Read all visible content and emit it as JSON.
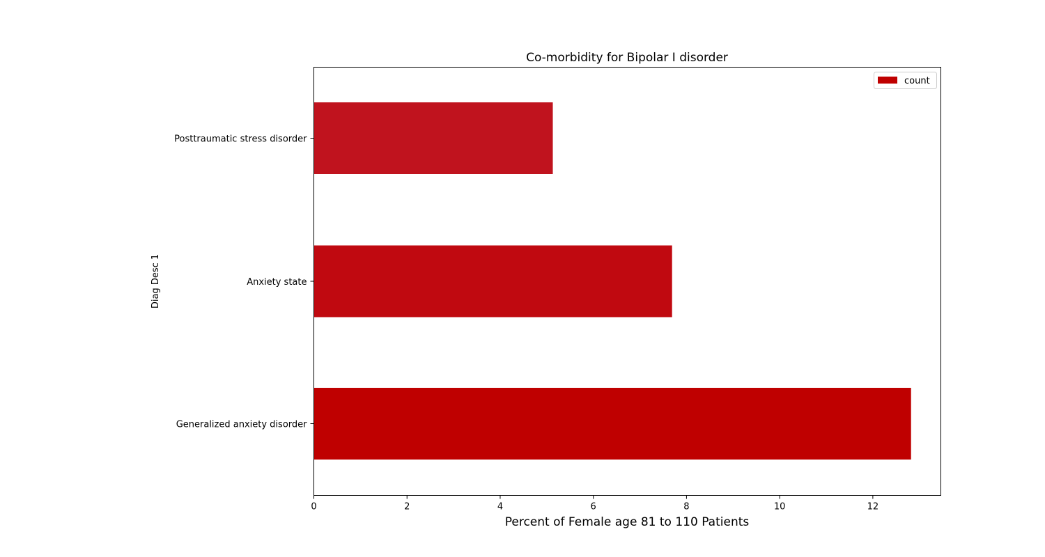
{
  "chart_data": {
    "type": "bar",
    "orientation": "horizontal",
    "title": "Co-morbidity for Bipolar I disorder",
    "xlabel": "Percent of Female age 81 to 110 Patients",
    "ylabel": "Diag Desc 1",
    "categories": [
      "Generalized anxiety disorder",
      "Anxiety state",
      "Posttraumatic stress disorder"
    ],
    "series": [
      {
        "name": "count",
        "values": [
          12.82,
          7.69,
          5.13
        ],
        "colors": [
          "#bf0000",
          "#c00910",
          "#c0131e"
        ]
      }
    ],
    "xlim": [
      0,
      13.46
    ],
    "xticks": [
      "0",
      "2",
      "4",
      "6",
      "8",
      "10",
      "12"
    ],
    "xtick_values": [
      0,
      2,
      4,
      6,
      8,
      10,
      12
    ],
    "legend_position": "top-right",
    "grid": false
  }
}
